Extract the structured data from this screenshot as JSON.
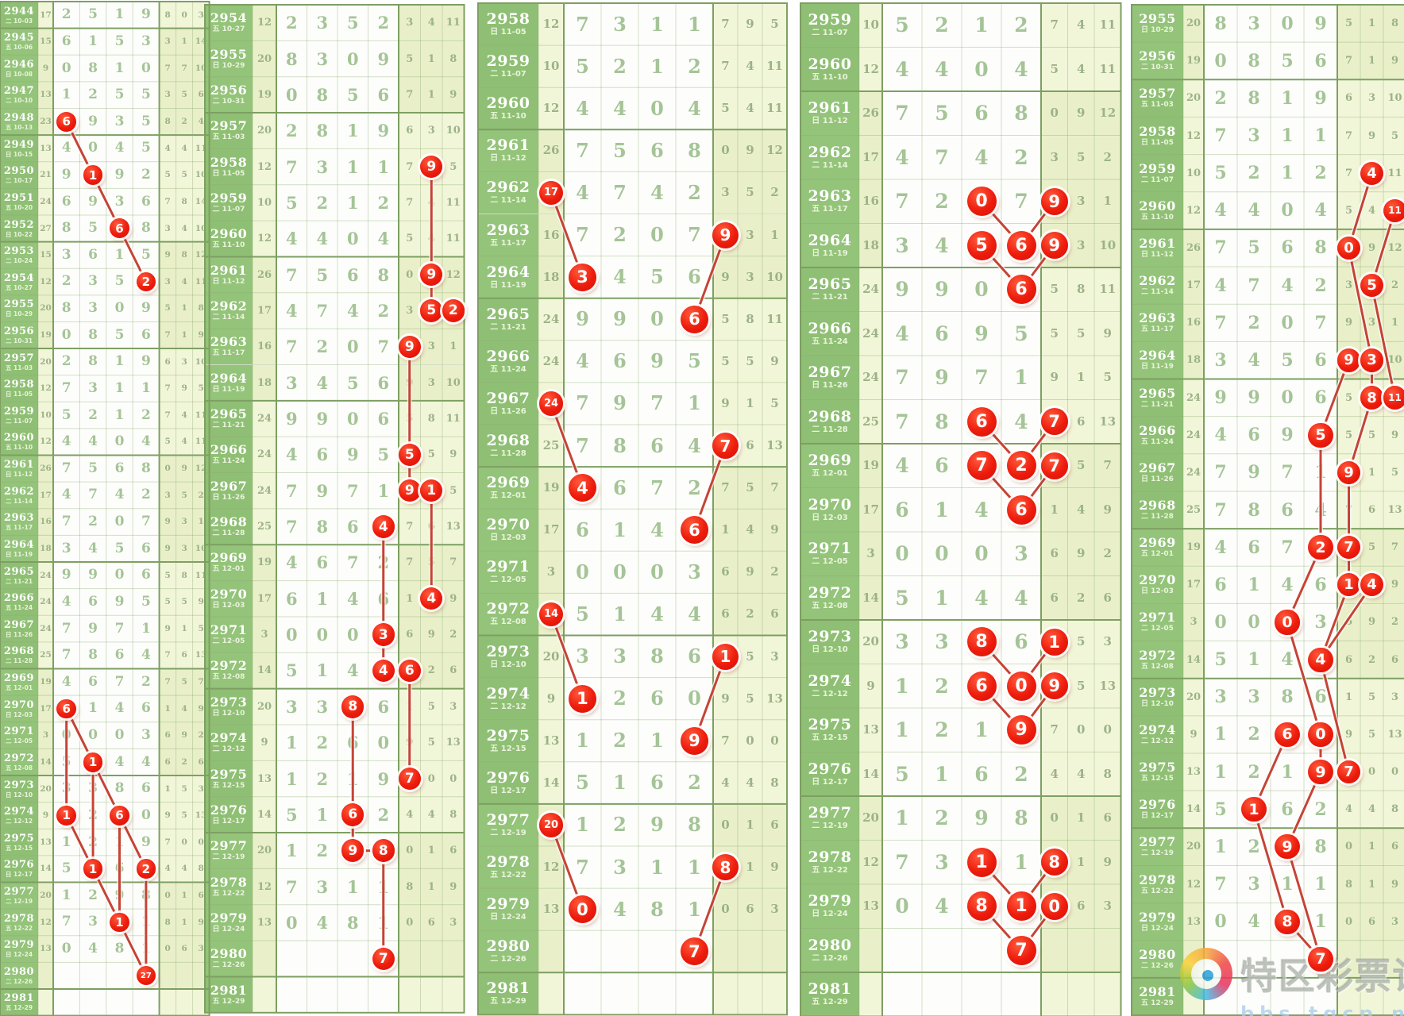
{
  "watermark": {
    "title": "特区彩票论坛",
    "url": "bbs.tqcp.net"
  },
  "colors": {
    "circle_red": "#ed1c0c",
    "trend_line_red": "#c23b2c",
    "period_green": "#8fbf74",
    "band_light": "#f2f6d9",
    "band_dark": "#e9f0c9",
    "grid_green": "#7d9f62"
  },
  "chart_data": {
    "type": "table",
    "title": "",
    "columns": [
      "period",
      "weekday",
      "date",
      "sum",
      "digits",
      "stats"
    ],
    "rows": [
      [
        2944,
        "二",
        "10-03",
        17,
        "2519",
        [
          8,
          0,
          3
        ]
      ],
      [
        2945,
        "五",
        "10-06",
        15,
        "6153",
        [
          3,
          1,
          14
        ]
      ],
      [
        2946,
        "日",
        "10-08",
        9,
        "0810",
        [
          7,
          7,
          10
        ]
      ],
      [
        2947,
        "二",
        "10-10",
        13,
        "1255",
        [
          3,
          5,
          6
        ]
      ],
      [
        2948,
        "五",
        "10-13",
        23,
        "6935",
        [
          8,
          2,
          4
        ]
      ],
      [
        2949,
        "日",
        "10-15",
        13,
        "4045",
        [
          4,
          4,
          11
        ]
      ],
      [
        2950,
        "二",
        "10-17",
        21,
        "9192",
        [
          5,
          5,
          10
        ]
      ],
      [
        2951,
        "五",
        "10-20",
        24,
        "6936",
        [
          7,
          8,
          14
        ]
      ],
      [
        2952,
        "日",
        "10-22",
        27,
        "8568",
        [
          3,
          4,
          10
        ]
      ],
      [
        2953,
        "二",
        "10-24",
        15,
        "3615",
        [
          9,
          8,
          12
        ]
      ],
      [
        2954,
        "五",
        "10-27",
        12,
        "2352",
        [
          3,
          4,
          11
        ]
      ],
      [
        2955,
        "日",
        "10-29",
        20,
        "8309",
        [
          5,
          1,
          8
        ]
      ],
      [
        2956,
        "二",
        "10-31",
        19,
        "0856",
        [
          7,
          1,
          9
        ]
      ],
      [
        2957,
        "五",
        "11-03",
        20,
        "2819",
        [
          6,
          3,
          10
        ]
      ],
      [
        2958,
        "日",
        "11-05",
        12,
        "7311",
        [
          7,
          9,
          5
        ]
      ],
      [
        2959,
        "二",
        "11-07",
        10,
        "5212",
        [
          7,
          4,
          11
        ]
      ],
      [
        2960,
        "五",
        "11-10",
        12,
        "4404",
        [
          5,
          4,
          11
        ]
      ],
      [
        2961,
        "日",
        "11-12",
        26,
        "7568",
        [
          0,
          9,
          12
        ]
      ],
      [
        2962,
        "二",
        "11-14",
        17,
        "4742",
        [
          3,
          5,
          2
        ]
      ],
      [
        2963,
        "五",
        "11-17",
        16,
        "7207",
        [
          9,
          3,
          1
        ]
      ],
      [
        2964,
        "日",
        "11-19",
        18,
        "3456",
        [
          9,
          3,
          10
        ]
      ],
      [
        2965,
        "二",
        "11-21",
        24,
        "9906",
        [
          5,
          8,
          11
        ]
      ],
      [
        2966,
        "五",
        "11-24",
        24,
        "4695",
        [
          5,
          5,
          9
        ]
      ],
      [
        2967,
        "日",
        "11-26",
        24,
        "7971",
        [
          9,
          1,
          5
        ]
      ],
      [
        2968,
        "二",
        "11-28",
        25,
        "7864",
        [
          7,
          6,
          13
        ]
      ],
      [
        2969,
        "五",
        "12-01",
        19,
        "4672",
        [
          7,
          5,
          7
        ]
      ],
      [
        2970,
        "日",
        "12-03",
        17,
        "6146",
        [
          1,
          4,
          9
        ]
      ],
      [
        2971,
        "二",
        "12-05",
        3,
        "0003",
        [
          6,
          9,
          2
        ]
      ],
      [
        2972,
        "五",
        "12-08",
        14,
        "5144",
        [
          6,
          2,
          6
        ]
      ],
      [
        2973,
        "日",
        "12-10",
        20,
        "3386",
        [
          1,
          5,
          3
        ]
      ],
      [
        2974,
        "二",
        "12-12",
        9,
        "1260",
        [
          9,
          5,
          13
        ]
      ],
      [
        2975,
        "五",
        "12-15",
        13,
        "1219",
        [
          7,
          0,
          0
        ]
      ],
      [
        2976,
        "日",
        "12-17",
        14,
        "5162",
        [
          4,
          4,
          8
        ]
      ],
      [
        2977,
        "二",
        "12-19",
        20,
        "1298",
        [
          0,
          1,
          6
        ]
      ],
      [
        2978,
        "五",
        "12-22",
        12,
        "7311",
        [
          8,
          1,
          9
        ]
      ],
      [
        2979,
        "日",
        "12-24",
        13,
        "0481",
        [
          0,
          6,
          3
        ]
      ],
      [
        2980,
        "二",
        "12-26",
        null,
        "",
        []
      ],
      [
        2981,
        "五",
        "12-29",
        null,
        "",
        []
      ]
    ]
  },
  "groups": [
    {
      "name": "panel-1",
      "first_period": 2944,
      "circles": [
        [
          2948,
          "d1",
          "6"
        ],
        [
          2950,
          "d2",
          "1"
        ],
        [
          2952,
          "d3",
          "6"
        ],
        [
          2954,
          "d4",
          "2"
        ],
        [
          2970,
          "d1",
          "6"
        ],
        [
          2972,
          "d2",
          "1"
        ],
        [
          2974,
          "d1",
          "1"
        ],
        [
          2974,
          "d3",
          "6"
        ],
        [
          2976,
          "d2",
          "1"
        ],
        [
          2976,
          "d4",
          "2"
        ],
        [
          2978,
          "d3",
          "1"
        ],
        [
          2980,
          "d4",
          "27"
        ]
      ],
      "links": [
        [
          2948,
          "d1",
          2950,
          "d2"
        ],
        [
          2950,
          "d2",
          2952,
          "d3"
        ],
        [
          2952,
          "d3",
          2954,
          "d4"
        ],
        [
          2970,
          "d1",
          2972,
          "d2"
        ],
        [
          2972,
          "d2",
          2974,
          "d3"
        ],
        [
          2974,
          "d3",
          2976,
          "d4"
        ],
        [
          2970,
          "d1",
          2974,
          "d1"
        ],
        [
          2974,
          "d1",
          2976,
          "d2"
        ],
        [
          2976,
          "d2",
          2978,
          "d3"
        ],
        [
          2978,
          "d3",
          2980,
          "d4"
        ],
        [
          2972,
          "d2",
          2976,
          "d2"
        ],
        [
          2974,
          "d3",
          2978,
          "d3"
        ],
        [
          2976,
          "d4",
          2980,
          "d4"
        ]
      ]
    },
    {
      "name": "panel-2",
      "first_period": 2954,
      "circles": [
        [
          2958,
          "s2",
          "9"
        ],
        [
          2961,
          "s2",
          "9"
        ],
        [
          2962,
          "s2",
          "5"
        ],
        [
          2962,
          "s3",
          "2"
        ],
        [
          2963,
          "s1",
          "9"
        ],
        [
          2966,
          "s1",
          "5"
        ],
        [
          2967,
          "s1",
          "9"
        ],
        [
          2967,
          "s2",
          "1"
        ],
        [
          2970,
          "s2",
          "4"
        ],
        [
          2968,
          "d4",
          "4"
        ],
        [
          2971,
          "d4",
          "3"
        ],
        [
          2972,
          "d4",
          "4"
        ],
        [
          2972,
          "s1",
          "6"
        ],
        [
          2973,
          "d3",
          "8"
        ],
        [
          2975,
          "s1",
          "7"
        ],
        [
          2976,
          "d3",
          "6"
        ],
        [
          2977,
          "d3",
          "9"
        ],
        [
          2977,
          "d4",
          "8"
        ],
        [
          2980,
          "d4",
          "7"
        ]
      ],
      "links": [
        [
          2958,
          "s2",
          2961,
          "s2"
        ],
        [
          2961,
          "s2",
          2962,
          "s2"
        ],
        [
          2962,
          "s2",
          2962,
          "s3"
        ],
        [
          2963,
          "s1",
          2966,
          "s1"
        ],
        [
          2966,
          "s1",
          2967,
          "s1"
        ],
        [
          2967,
          "s1",
          2967,
          "s2"
        ],
        [
          2967,
          "s2",
          2970,
          "s2"
        ],
        [
          2968,
          "d4",
          2971,
          "d4"
        ],
        [
          2971,
          "d4",
          2972,
          "d4"
        ],
        [
          2972,
          "d4",
          2972,
          "s1"
        ],
        [
          2972,
          "s1",
          2975,
          "s1"
        ],
        [
          2973,
          "d3",
          2976,
          "d3"
        ],
        [
          2976,
          "d3",
          2977,
          "d3"
        ],
        [
          2977,
          "d3",
          2977,
          "d4"
        ],
        [
          2977,
          "d4",
          2980,
          "d4"
        ]
      ]
    },
    {
      "name": "panel-3",
      "first_period": 2958,
      "circles": [
        [
          2962,
          "sum",
          "17"
        ],
        [
          2963,
          "s1",
          "9"
        ],
        [
          2964,
          "d1",
          "3"
        ],
        [
          2965,
          "d4",
          "6"
        ],
        [
          2967,
          "sum",
          "24"
        ],
        [
          2968,
          "s1",
          "7"
        ],
        [
          2969,
          "d1",
          "4"
        ],
        [
          2970,
          "d4",
          "6"
        ],
        [
          2972,
          "sum",
          "14"
        ],
        [
          2973,
          "s1",
          "1"
        ],
        [
          2974,
          "d1",
          "1"
        ],
        [
          2975,
          "d4",
          "9"
        ],
        [
          2977,
          "sum",
          "20"
        ],
        [
          2978,
          "s1",
          "8"
        ],
        [
          2979,
          "d1",
          "0"
        ],
        [
          2980,
          "d4",
          "7"
        ]
      ],
      "links": [
        [
          2962,
          "sum",
          2964,
          "d1"
        ],
        [
          2963,
          "s1",
          2965,
          "d4"
        ],
        [
          2967,
          "sum",
          2969,
          "d1"
        ],
        [
          2968,
          "s1",
          2970,
          "d4"
        ],
        [
          2972,
          "sum",
          2974,
          "d1"
        ],
        [
          2973,
          "s1",
          2975,
          "d4"
        ],
        [
          2977,
          "sum",
          2979,
          "d1"
        ],
        [
          2978,
          "s1",
          2980,
          "d4"
        ]
      ]
    },
    {
      "name": "panel-4",
      "first_period": 2959,
      "circles": [
        [
          2963,
          "d3",
          "0"
        ],
        [
          2963,
          "s1",
          "9"
        ],
        [
          2964,
          "d3",
          "5"
        ],
        [
          2964,
          "d4",
          "6"
        ],
        [
          2964,
          "s1",
          "9"
        ],
        [
          2965,
          "d4",
          "6"
        ],
        [
          2968,
          "d3",
          "6"
        ],
        [
          2968,
          "s1",
          "7"
        ],
        [
          2969,
          "d3",
          "7"
        ],
        [
          2969,
          "d4",
          "2"
        ],
        [
          2969,
          "s1",
          "7"
        ],
        [
          2970,
          "d4",
          "6"
        ],
        [
          2973,
          "d3",
          "8"
        ],
        [
          2973,
          "s1",
          "1"
        ],
        [
          2974,
          "d3",
          "6"
        ],
        [
          2974,
          "d4",
          "0"
        ],
        [
          2974,
          "s1",
          "9"
        ],
        [
          2975,
          "d4",
          "9"
        ],
        [
          2978,
          "d3",
          "1"
        ],
        [
          2978,
          "s1",
          "8"
        ],
        [
          2979,
          "d3",
          "8"
        ],
        [
          2979,
          "d4",
          "1"
        ],
        [
          2979,
          "s1",
          "0"
        ],
        [
          2980,
          "d4",
          "7"
        ]
      ],
      "links": [
        [
          2963,
          "d3",
          2964,
          "d4"
        ],
        [
          2963,
          "s1",
          2964,
          "d4"
        ],
        [
          2964,
          "d3",
          2965,
          "d4"
        ],
        [
          2964,
          "s1",
          2965,
          "d4"
        ],
        [
          2968,
          "d3",
          2969,
          "d4"
        ],
        [
          2968,
          "s1",
          2969,
          "d4"
        ],
        [
          2969,
          "d3",
          2970,
          "d4"
        ],
        [
          2969,
          "s1",
          2970,
          "d4"
        ],
        [
          2973,
          "d3",
          2974,
          "d4"
        ],
        [
          2973,
          "s1",
          2974,
          "d4"
        ],
        [
          2974,
          "d3",
          2975,
          "d4"
        ],
        [
          2974,
          "s1",
          2975,
          "d4"
        ],
        [
          2978,
          "d3",
          2979,
          "d4"
        ],
        [
          2978,
          "s1",
          2979,
          "d4"
        ],
        [
          2979,
          "d3",
          2980,
          "d4"
        ],
        [
          2979,
          "s1",
          2980,
          "d4"
        ]
      ]
    },
    {
      "name": "panel-5",
      "first_period": 2955,
      "circles": [
        [
          2959,
          "s2",
          "4"
        ],
        [
          2960,
          "s3",
          "11"
        ],
        [
          2961,
          "s1",
          "0"
        ],
        [
          2962,
          "s2",
          "5"
        ],
        [
          2964,
          "s1",
          "9"
        ],
        [
          2964,
          "s2",
          "3"
        ],
        [
          2965,
          "s2",
          "8"
        ],
        [
          2965,
          "s3",
          "11"
        ],
        [
          2966,
          "d4",
          "5"
        ],
        [
          2967,
          "s1",
          "9"
        ],
        [
          2969,
          "d4",
          "2"
        ],
        [
          2969,
          "s1",
          "7"
        ],
        [
          2970,
          "s1",
          "1"
        ],
        [
          2970,
          "s2",
          "4"
        ],
        [
          2971,
          "d3",
          "0"
        ],
        [
          2972,
          "d4",
          "4"
        ],
        [
          2974,
          "d3",
          "6"
        ],
        [
          2974,
          "d4",
          "0"
        ],
        [
          2975,
          "d4",
          "9"
        ],
        [
          2975,
          "s1",
          "7"
        ],
        [
          2976,
          "d2",
          "1"
        ],
        [
          2977,
          "d3",
          "9"
        ],
        [
          2979,
          "d3",
          "8"
        ],
        [
          2980,
          "d4",
          "7"
        ]
      ],
      "links": [
        [
          2959,
          "s2",
          2961,
          "s1"
        ],
        [
          2960,
          "s3",
          2962,
          "s2"
        ],
        [
          2961,
          "s1",
          2964,
          "s2"
        ],
        [
          2962,
          "s2",
          2965,
          "s3"
        ],
        [
          2964,
          "s2",
          2965,
          "s2"
        ],
        [
          2964,
          "s1",
          2966,
          "d4"
        ],
        [
          2965,
          "s2",
          2967,
          "s1"
        ],
        [
          2966,
          "d4",
          2969,
          "d4"
        ],
        [
          2967,
          "s1",
          2969,
          "s1"
        ],
        [
          2969,
          "s1",
          2970,
          "s1"
        ],
        [
          2970,
          "s1",
          2972,
          "d4"
        ],
        [
          2970,
          "s2",
          2972,
          "d4"
        ],
        [
          2969,
          "d4",
          2971,
          "d3"
        ],
        [
          2971,
          "d3",
          2974,
          "d4"
        ],
        [
          2972,
          "d4",
          2975,
          "s1"
        ],
        [
          2974,
          "d3",
          2976,
          "d2"
        ],
        [
          2974,
          "d4",
          2975,
          "d4"
        ],
        [
          2975,
          "d4",
          2977,
          "d3"
        ],
        [
          2976,
          "d2",
          2979,
          "d3"
        ],
        [
          2977,
          "d3",
          2980,
          "d4"
        ],
        [
          2979,
          "d3",
          2980,
          "d4"
        ]
      ]
    }
  ]
}
